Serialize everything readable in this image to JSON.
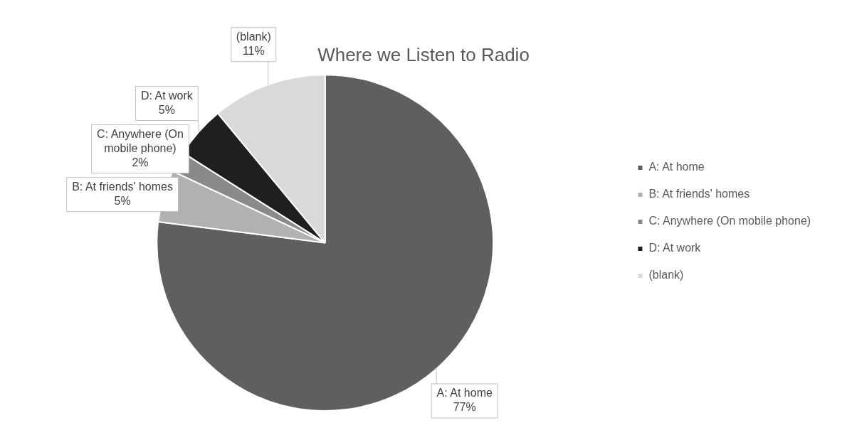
{
  "chart_data": {
    "type": "pie",
    "title": "Where we Listen to Radio",
    "categories": [
      "A: At home",
      "B: At friends' homes",
      "C: Anywhere (On mobile phone)",
      "D: At work",
      "(blank)"
    ],
    "values": [
      77,
      5,
      2,
      5,
      11
    ],
    "colors": [
      "#5f5f5f",
      "#b1b1b1",
      "#8a8a8a",
      "#1f1f1f",
      "#d9d9d9"
    ],
    "value_labels": [
      "77%",
      "5%",
      "2%",
      "5%",
      "11%"
    ],
    "legend": "right"
  }
}
